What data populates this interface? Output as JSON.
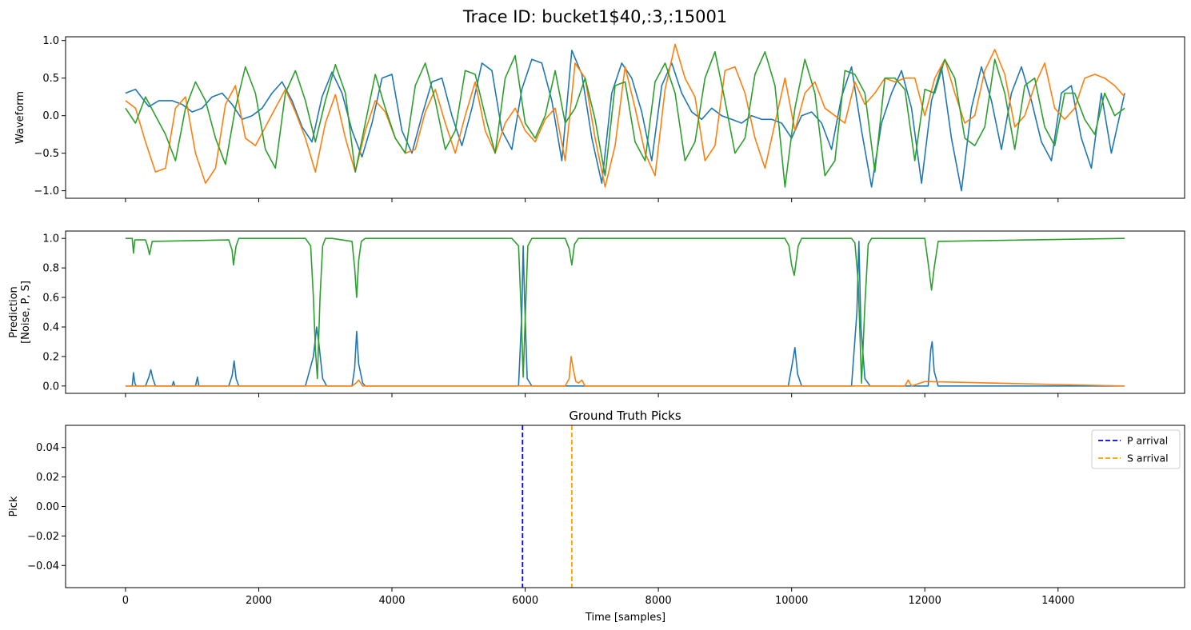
{
  "figure": {
    "suptitle": "Trace ID: bucket1$40,:3,:15001",
    "xlabel": "Time [samples]"
  },
  "chart_data": [
    {
      "type": "line",
      "panel": "waveform",
      "title": "",
      "ylabel": "Waveform",
      "xlim": [
        -900,
        15900
      ],
      "ylim": [
        -1.1,
        1.05
      ],
      "xticks": [
        0,
        2000,
        4000,
        6000,
        8000,
        10000,
        12000,
        14000
      ],
      "show_xtick_labels": false,
      "yticks": [
        -1.0,
        -0.5,
        0.0,
        0.5,
        1.0
      ],
      "ytick_labels": [
        "−1.0",
        "−0.5",
        "0.0",
        "0.5",
        "1.0"
      ],
      "series": [
        {
          "color": "#1f77b4",
          "x": [
            0,
            150,
            350,
            500,
            700,
            850,
            1000,
            1150,
            1300,
            1450,
            1600,
            1750,
            1900,
            2050,
            2200,
            2350,
            2500,
            2650,
            2800,
            2950,
            3100,
            3250,
            3400,
            3550,
            3700,
            3850,
            4000,
            4150,
            4300,
            4450,
            4600,
            4750,
            4900,
            5050,
            5200,
            5350,
            5500,
            5650,
            5800,
            5950,
            6100,
            6250,
            6400,
            6550,
            6700,
            6850,
            7000,
            7150,
            7300,
            7450,
            7600,
            7750,
            7900,
            8050,
            8200,
            8350,
            8500,
            8650,
            8800,
            8950,
            9100,
            9250,
            9400,
            9550,
            9700,
            9850,
            10000,
            10150,
            10300,
            10450,
            10600,
            10750,
            10900,
            11050,
            11200,
            11350,
            11500,
            11650,
            11800,
            11950,
            12100,
            12250,
            12400,
            12550,
            12700,
            12850,
            13000,
            13150,
            13300,
            13450,
            13600,
            13750,
            13900,
            14050,
            14200,
            14350,
            14500,
            14650,
            14800,
            15000
          ],
          "y": [
            0.3,
            0.35,
            0.12,
            0.2,
            0.2,
            0.15,
            0.05,
            0.1,
            0.25,
            0.3,
            0.15,
            -0.05,
            0.0,
            0.1,
            0.3,
            0.45,
            0.2,
            -0.15,
            -0.35,
            0.25,
            0.58,
            0.3,
            -0.2,
            -0.55,
            -0.1,
            0.5,
            0.55,
            -0.2,
            -0.5,
            0.0,
            0.45,
            0.5,
            0.0,
            -0.4,
            0.1,
            0.7,
            0.6,
            -0.2,
            -0.45,
            0.35,
            0.75,
            0.7,
            0.2,
            -0.6,
            0.87,
            0.55,
            -0.3,
            -0.9,
            0.3,
            0.7,
            0.5,
            0.05,
            -0.6,
            0.4,
            0.7,
            0.3,
            0.05,
            -0.05,
            0.1,
            0.0,
            -0.05,
            -0.1,
            0.0,
            -0.05,
            -0.05,
            -0.1,
            -0.3,
            0.0,
            0.05,
            -0.1,
            -0.45,
            0.25,
            0.65,
            -0.2,
            -0.95,
            -0.1,
            0.3,
            0.6,
            0.1,
            -0.9,
            0.2,
            0.65,
            -0.3,
            -1.0,
            0.1,
            0.65,
            0.2,
            -0.45,
            0.3,
            0.65,
            0.2,
            -0.35,
            -0.6,
            0.3,
            0.4,
            -0.3,
            -0.7,
            0.3,
            -0.5,
            0.3
          ]
        },
        {
          "color": "#ff7f0e",
          "x": [
            0,
            150,
            300,
            450,
            600,
            750,
            900,
            1050,
            1200,
            1350,
            1500,
            1650,
            1800,
            1950,
            2100,
            2250,
            2400,
            2550,
            2700,
            2850,
            3000,
            3150,
            3300,
            3450,
            3600,
            3750,
            3900,
            4050,
            4200,
            4350,
            4500,
            4650,
            4800,
            4950,
            5100,
            5250,
            5400,
            5550,
            5700,
            5850,
            6000,
            6150,
            6300,
            6450,
            6600,
            6750,
            6900,
            7050,
            7200,
            7350,
            7500,
            7650,
            7800,
            7950,
            8100,
            8250,
            8400,
            8550,
            8700,
            8850,
            9000,
            9150,
            9300,
            9450,
            9600,
            9750,
            9900,
            10050,
            10200,
            10350,
            10500,
            10650,
            10800,
            10950,
            11100,
            11250,
            11400,
            11550,
            11700,
            11850,
            12000,
            12150,
            12300,
            12450,
            12600,
            12750,
            12900,
            13050,
            13200,
            13350,
            13500,
            13650,
            13800,
            13950,
            14100,
            14250,
            14400,
            14550,
            14700,
            14850,
            15000
          ],
          "y": [
            0.2,
            0.1,
            -0.35,
            -0.75,
            -0.7,
            0.1,
            0.25,
            -0.5,
            -0.9,
            -0.7,
            0.15,
            0.4,
            -0.3,
            -0.4,
            -0.15,
            0.1,
            0.35,
            0.05,
            -0.3,
            -0.75,
            -0.1,
            0.28,
            -0.3,
            -0.75,
            -0.2,
            0.2,
            0.05,
            -0.3,
            -0.5,
            -0.45,
            0.05,
            0.35,
            -0.1,
            -0.5,
            0.0,
            0.45,
            -0.2,
            -0.5,
            -0.1,
            0.1,
            -0.2,
            -0.35,
            -0.05,
            0.1,
            -0.6,
            0.7,
            0.5,
            -0.3,
            -0.95,
            -0.4,
            0.65,
            0.1,
            -0.5,
            -0.8,
            0.35,
            0.95,
            0.5,
            0.25,
            -0.6,
            -0.4,
            0.6,
            0.65,
            0.3,
            -0.3,
            -0.7,
            -0.1,
            0.5,
            -0.2,
            0.3,
            0.45,
            0.1,
            0.0,
            -0.1,
            0.45,
            0.15,
            0.3,
            0.5,
            0.45,
            0.5,
            0.5,
            0.0,
            0.5,
            0.75,
            0.3,
            -0.1,
            0.0,
            0.6,
            0.88,
            0.55,
            -0.15,
            0.0,
            0.4,
            0.7,
            0.1,
            -0.05,
            0.1,
            0.5,
            0.55,
            0.5,
            0.4,
            0.25
          ]
        },
        {
          "color": "#2ca02c",
          "x": [
            0,
            150,
            300,
            450,
            600,
            750,
            900,
            1050,
            1200,
            1350,
            1500,
            1650,
            1800,
            1950,
            2100,
            2250,
            2400,
            2550,
            2700,
            2850,
            3000,
            3150,
            3300,
            3450,
            3600,
            3750,
            3900,
            4050,
            4200,
            4350,
            4500,
            4650,
            4800,
            4950,
            5100,
            5250,
            5400,
            5550,
            5700,
            5850,
            6000,
            6150,
            6300,
            6450,
            6600,
            6750,
            6900,
            7050,
            7200,
            7350,
            7500,
            7650,
            7800,
            7950,
            8100,
            8250,
            8400,
            8550,
            8700,
            8850,
            9000,
            9150,
            9300,
            9450,
            9600,
            9750,
            9900,
            10050,
            10200,
            10350,
            10500,
            10650,
            10800,
            10950,
            11100,
            11250,
            11400,
            11550,
            11700,
            11850,
            12000,
            12150,
            12300,
            12450,
            12600,
            12750,
            12900,
            13050,
            13200,
            13350,
            13500,
            13650,
            13800,
            13950,
            14100,
            14250,
            14400,
            14550,
            14700,
            14850,
            15000
          ],
          "y": [
            0.1,
            -0.1,
            0.25,
            0.0,
            -0.25,
            -0.6,
            0.1,
            0.45,
            0.2,
            -0.3,
            -0.65,
            0.1,
            0.65,
            0.3,
            -0.45,
            -0.7,
            0.3,
            0.6,
            0.2,
            -0.35,
            0.2,
            0.68,
            0.3,
            -0.75,
            -0.1,
            0.55,
            0.1,
            -0.3,
            -0.5,
            0.4,
            0.7,
            0.2,
            -0.45,
            -0.2,
            0.6,
            0.55,
            0.0,
            -0.5,
            0.5,
            0.8,
            -0.1,
            -0.3,
            0.0,
            0.6,
            -0.1,
            0.1,
            0.5,
            -0.05,
            -0.8,
            0.4,
            0.45,
            -0.35,
            -0.6,
            0.45,
            0.7,
            0.3,
            -0.6,
            -0.35,
            0.5,
            0.85,
            0.2,
            -0.5,
            -0.3,
            0.55,
            0.85,
            0.4,
            -0.95,
            0.1,
            0.75,
            0.3,
            -0.8,
            -0.6,
            0.6,
            0.55,
            0.3,
            -0.75,
            0.5,
            0.5,
            0.35,
            -0.6,
            0.35,
            0.3,
            0.75,
            0.5,
            -0.3,
            -0.4,
            -0.15,
            0.75,
            0.3,
            -0.45,
            0.4,
            0.5,
            -0.15,
            -0.4,
            0.3,
            0.3,
            -0.05,
            -0.25,
            0.3,
            0.0,
            0.1
          ]
        }
      ]
    },
    {
      "type": "line",
      "panel": "prediction",
      "title": "",
      "ylabel_lines": [
        "Prediction",
        "[Noise, P, S]"
      ],
      "xlim": [
        -900,
        15900
      ],
      "ylim": [
        -0.05,
        1.05
      ],
      "xticks": [
        0,
        2000,
        4000,
        6000,
        8000,
        10000,
        12000,
        14000
      ],
      "show_xtick_labels": false,
      "yticks": [
        0.0,
        0.2,
        0.4,
        0.6,
        0.8,
        1.0
      ],
      "ytick_labels": [
        "0.0",
        "0.2",
        "0.4",
        "0.6",
        "0.8",
        "1.0"
      ],
      "series": [
        {
          "color": "#1f77b4",
          "x": [
            0,
            100,
            120,
            140,
            160,
            300,
            350,
            380,
            410,
            450,
            700,
            720,
            740,
            1050,
            1080,
            1100,
            1550,
            1600,
            1630,
            1660,
            1700,
            2700,
            2820,
            2870,
            2900,
            2960,
            3020,
            3400,
            3440,
            3470,
            3500,
            3560,
            3600,
            5900,
            5950,
            5970,
            5990,
            6030,
            6100,
            9950,
            10010,
            10050,
            10090,
            10150,
            10900,
            10980,
            11010,
            11040,
            11100,
            11180,
            12050,
            12090,
            12110,
            12140,
            12200,
            15000
          ],
          "y": [
            0,
            0,
            0.09,
            0.02,
            0,
            0,
            0.06,
            0.11,
            0.05,
            0,
            0,
            0.03,
            0,
            0,
            0.06,
            0,
            0,
            0.07,
            0.17,
            0.05,
            0,
            0,
            0.2,
            0.4,
            0.3,
            0.05,
            0,
            0,
            0.12,
            0.37,
            0.15,
            0.02,
            0,
            0,
            0.5,
            0.95,
            0.6,
            0.05,
            0,
            0,
            0.15,
            0.26,
            0.08,
            0,
            0,
            0.5,
            0.98,
            0.4,
            0.05,
            0,
            0,
            0.25,
            0.3,
            0.1,
            0,
            0
          ]
        },
        {
          "color": "#ff7f0e",
          "x": [
            0,
            3400,
            3460,
            3500,
            3560,
            6600,
            6660,
            6690,
            6720,
            6760,
            6800,
            6850,
            6900,
            11700,
            11750,
            11800,
            12000,
            15000
          ],
          "y": [
            0,
            0,
            0.02,
            0.04,
            0,
            0,
            0.05,
            0.2,
            0.12,
            0.03,
            0.02,
            0.04,
            0,
            0,
            0.04,
            0,
            0.03,
            0
          ]
        },
        {
          "color": "#2ca02c",
          "x": [
            0,
            100,
            120,
            140,
            300,
            330,
            360,
            400,
            1550,
            1600,
            1620,
            1660,
            1700,
            2700,
            2780,
            2820,
            2850,
            2880,
            2920,
            2960,
            3000,
            3100,
            3400,
            3440,
            3470,
            3500,
            3540,
            3600,
            5800,
            5900,
            5940,
            5970,
            6000,
            6040,
            6100,
            6600,
            6660,
            6700,
            6740,
            6800,
            9900,
            9960,
            10000,
            10040,
            10100,
            10150,
            10900,
            10950,
            11000,
            11050,
            11100,
            11150,
            11200,
            12000,
            12060,
            12100,
            12140,
            12200,
            15000
          ],
          "y": [
            1,
            1,
            0.9,
            0.99,
            0.99,
            0.95,
            0.89,
            0.98,
            0.99,
            0.92,
            0.82,
            0.95,
            1,
            1,
            0.95,
            0.6,
            0.25,
            0.05,
            0.6,
            0.95,
            1,
            1,
            0.98,
            0.8,
            0.6,
            0.85,
            0.98,
            1,
            1,
            0.95,
            0.5,
            0.06,
            0.45,
            0.95,
            1,
            1,
            0.93,
            0.82,
            0.96,
            1,
            1,
            0.95,
            0.82,
            0.75,
            0.95,
            1,
            1,
            0.97,
            0.7,
            0.02,
            0.55,
            0.96,
            1,
            1,
            0.8,
            0.65,
            0.8,
            0.98,
            1
          ]
        }
      ]
    },
    {
      "type": "line",
      "panel": "picks",
      "title": "Ground Truth Picks",
      "ylabel": "Pick",
      "xlim": [
        -900,
        15900
      ],
      "ylim": [
        -0.055,
        0.055
      ],
      "xticks": [
        0,
        2000,
        4000,
        6000,
        8000,
        10000,
        12000,
        14000
      ],
      "xtick_labels": [
        "0",
        "2000",
        "4000",
        "6000",
        "8000",
        "10000",
        "12000",
        "14000"
      ],
      "show_xtick_labels": true,
      "yticks": [
        -0.04,
        -0.02,
        0.0,
        0.02,
        0.04
      ],
      "ytick_labels": [
        "−0.04",
        "−0.02",
        "0.00",
        "0.02",
        "0.04"
      ],
      "vlines": [
        {
          "label": "P arrival",
          "x": 5960,
          "color": "#0000ff",
          "style": "dashed"
        },
        {
          "label": "S arrival",
          "x": 6700,
          "color": "#ffa500",
          "style": "dashed"
        }
      ],
      "legend": "top-right"
    }
  ]
}
